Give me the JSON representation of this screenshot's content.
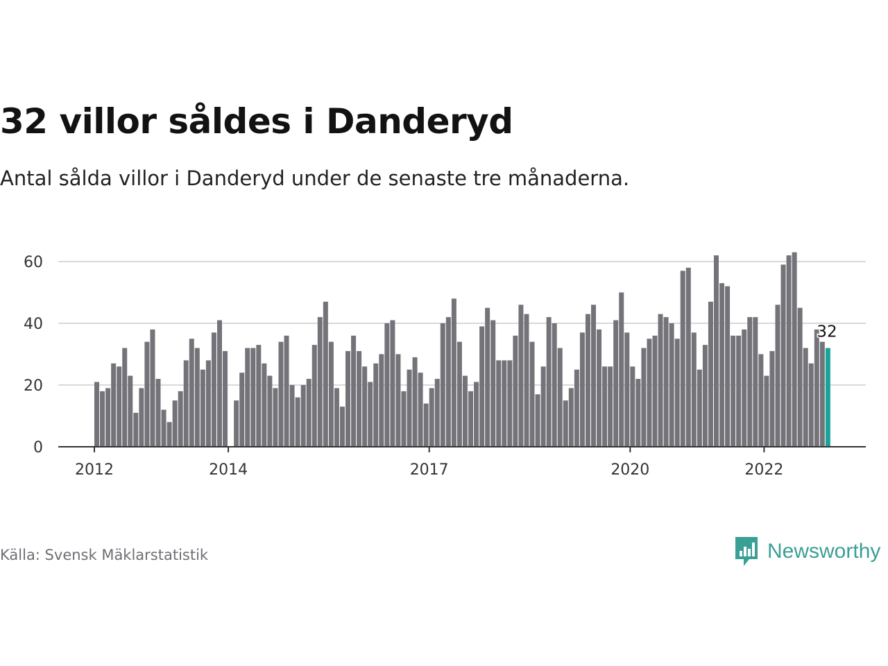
{
  "title": "32 villor såldes i Danderyd",
  "subtitle": "Antal sålda villor i Danderyd under de senaste tre månaderna.",
  "source": "Källa: Svensk Mäklarstatistik",
  "logo_text": "Newsworthy",
  "colors": {
    "bar": "#747379",
    "highlight": "#1aa39a",
    "grid": "#d9d9d9",
    "axis": "#333333",
    "logo": "#3a9f95"
  },
  "chart_data": {
    "type": "bar",
    "x_start": "2012-01",
    "x_step": "month",
    "values": [
      21,
      18,
      19,
      27,
      26,
      32,
      23,
      11,
      19,
      34,
      38,
      22,
      12,
      8,
      15,
      18,
      28,
      35,
      32,
      25,
      28,
      37,
      41,
      31,
      0,
      15,
      24,
      32,
      32,
      33,
      27,
      23,
      19,
      34,
      36,
      20,
      16,
      20,
      22,
      33,
      42,
      47,
      34,
      19,
      13,
      31,
      36,
      31,
      26,
      21,
      27,
      30,
      40,
      41,
      30,
      18,
      25,
      29,
      24,
      14,
      19,
      22,
      40,
      42,
      48,
      34,
      23,
      18,
      21,
      39,
      45,
      41,
      28,
      28,
      28,
      36,
      46,
      43,
      34,
      17,
      26,
      42,
      40,
      32,
      15,
      19,
      25,
      37,
      43,
      46,
      38,
      26,
      26,
      41,
      50,
      37,
      26,
      22,
      32,
      35,
      36,
      43,
      42,
      40,
      35,
      57,
      58,
      37,
      25,
      33,
      47,
      62,
      53,
      52,
      36,
      36,
      38,
      42,
      42,
      30,
      23,
      31,
      46,
      59,
      62,
      63,
      45,
      32,
      27,
      38,
      34,
      32
    ],
    "highlight_last": true,
    "last_value_label": "32",
    "x_ticks": [
      "2012",
      "2014",
      "2017",
      "2020",
      "2022"
    ],
    "y_ticks": [
      0,
      20,
      40,
      60
    ],
    "ylim": [
      0,
      70
    ],
    "grid": true
  }
}
